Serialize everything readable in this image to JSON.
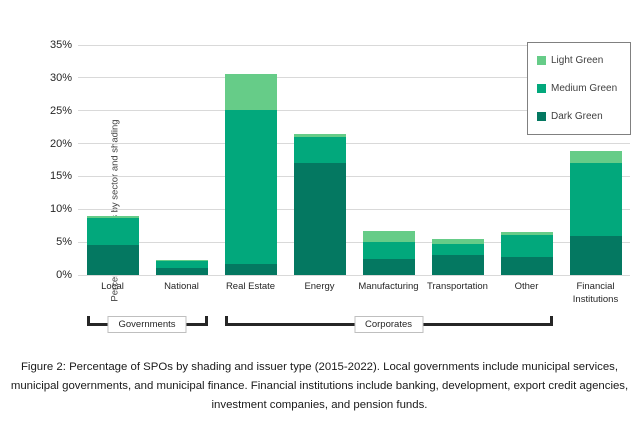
{
  "caption": "Figure 2: Percentage of SPOs by shading and issuer type (2015-2022). Local governments include municipal services, municipal governments, and municipal finance. Financial institutions include banking, development, export credit agencies, investment companies, and pension funds.",
  "colors": {
    "light_green": "#66CC88",
    "medium_green": "#02A87C",
    "dark_green": "#047861",
    "gridline": "#d9d9d9",
    "bracket": "#262626",
    "legend_border": "#808080",
    "text": "#262626"
  },
  "chart_data": {
    "type": "bar",
    "subtype": "stacked-vertical",
    "title": "",
    "xlabel": "",
    "ylabel": "Percentage of SPOs by sector and shading",
    "ylim": [
      0,
      35
    ],
    "ytick_step": 5,
    "ytick_labels": [
      "0%",
      "5%",
      "10%",
      "15%",
      "20%",
      "25%",
      "30%",
      "35%"
    ],
    "grid": "horizontal",
    "legend_position": "top-right",
    "legend_order": [
      "Light Green",
      "Medium Green",
      "Dark Green"
    ],
    "categories": [
      "Local",
      "National",
      "Real Estate",
      "Energy",
      "Manufacturing",
      "Transportation",
      "Other",
      "Financial Institutions"
    ],
    "series": [
      {
        "name": "Dark Green",
        "color": "#047861",
        "values": [
          4.6,
          1.1,
          1.7,
          17.0,
          2.5,
          3.1,
          2.8,
          6.0
        ]
      },
      {
        "name": "Medium Green",
        "color": "#02A87C",
        "values": [
          4.1,
          1.1,
          23.4,
          4.0,
          2.5,
          1.6,
          3.3,
          11.0
        ]
      },
      {
        "name": "Light Green",
        "color": "#66CC88",
        "values": [
          0.3,
          0.1,
          5.5,
          0.5,
          1.7,
          0.8,
          0.5,
          1.8
        ]
      }
    ],
    "totals": [
      9.0,
      2.3,
      30.6,
      21.5,
      6.7,
      5.5,
      6.6,
      18.8
    ],
    "category_groups": [
      {
        "label": "Governments",
        "from": 0,
        "to": 1
      },
      {
        "label": "Corporates",
        "from": 2,
        "to": 6
      }
    ]
  }
}
